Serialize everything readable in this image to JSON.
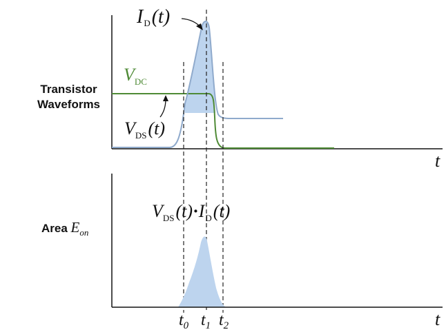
{
  "left_labels": {
    "top_line1": "Transistor",
    "top_line2": "Waveforms",
    "bottom_prefix": "Area",
    "bottom_symbol": "E",
    "bottom_symbol_sub": "on"
  },
  "top_plot": {
    "id_label": {
      "main": "I",
      "sub": "D",
      "arg": "(t)"
    },
    "vdc_label": {
      "main": "V",
      "sub": "DC"
    },
    "vds_label": {
      "main": "V",
      "sub": "DS",
      "arg": "(t)"
    },
    "axis_label": "t"
  },
  "bottom_plot": {
    "product_label": {
      "v": "V",
      "v_sub": "DS",
      "v_arg": "(t)",
      "dot": "·",
      "i": "I",
      "i_sub": "D",
      "i_arg": "(t)"
    },
    "axis_label": "t"
  },
  "time_markers": [
    {
      "main": "t",
      "sub": "0"
    },
    {
      "main": "t",
      "sub": "1"
    },
    {
      "main": "t",
      "sub": "2"
    }
  ],
  "colors": {
    "vds": "#8faacc",
    "vdc": "#4e8a35",
    "fill": "#bdd4ee",
    "axis": "#111111",
    "dashed": "#222222"
  }
}
